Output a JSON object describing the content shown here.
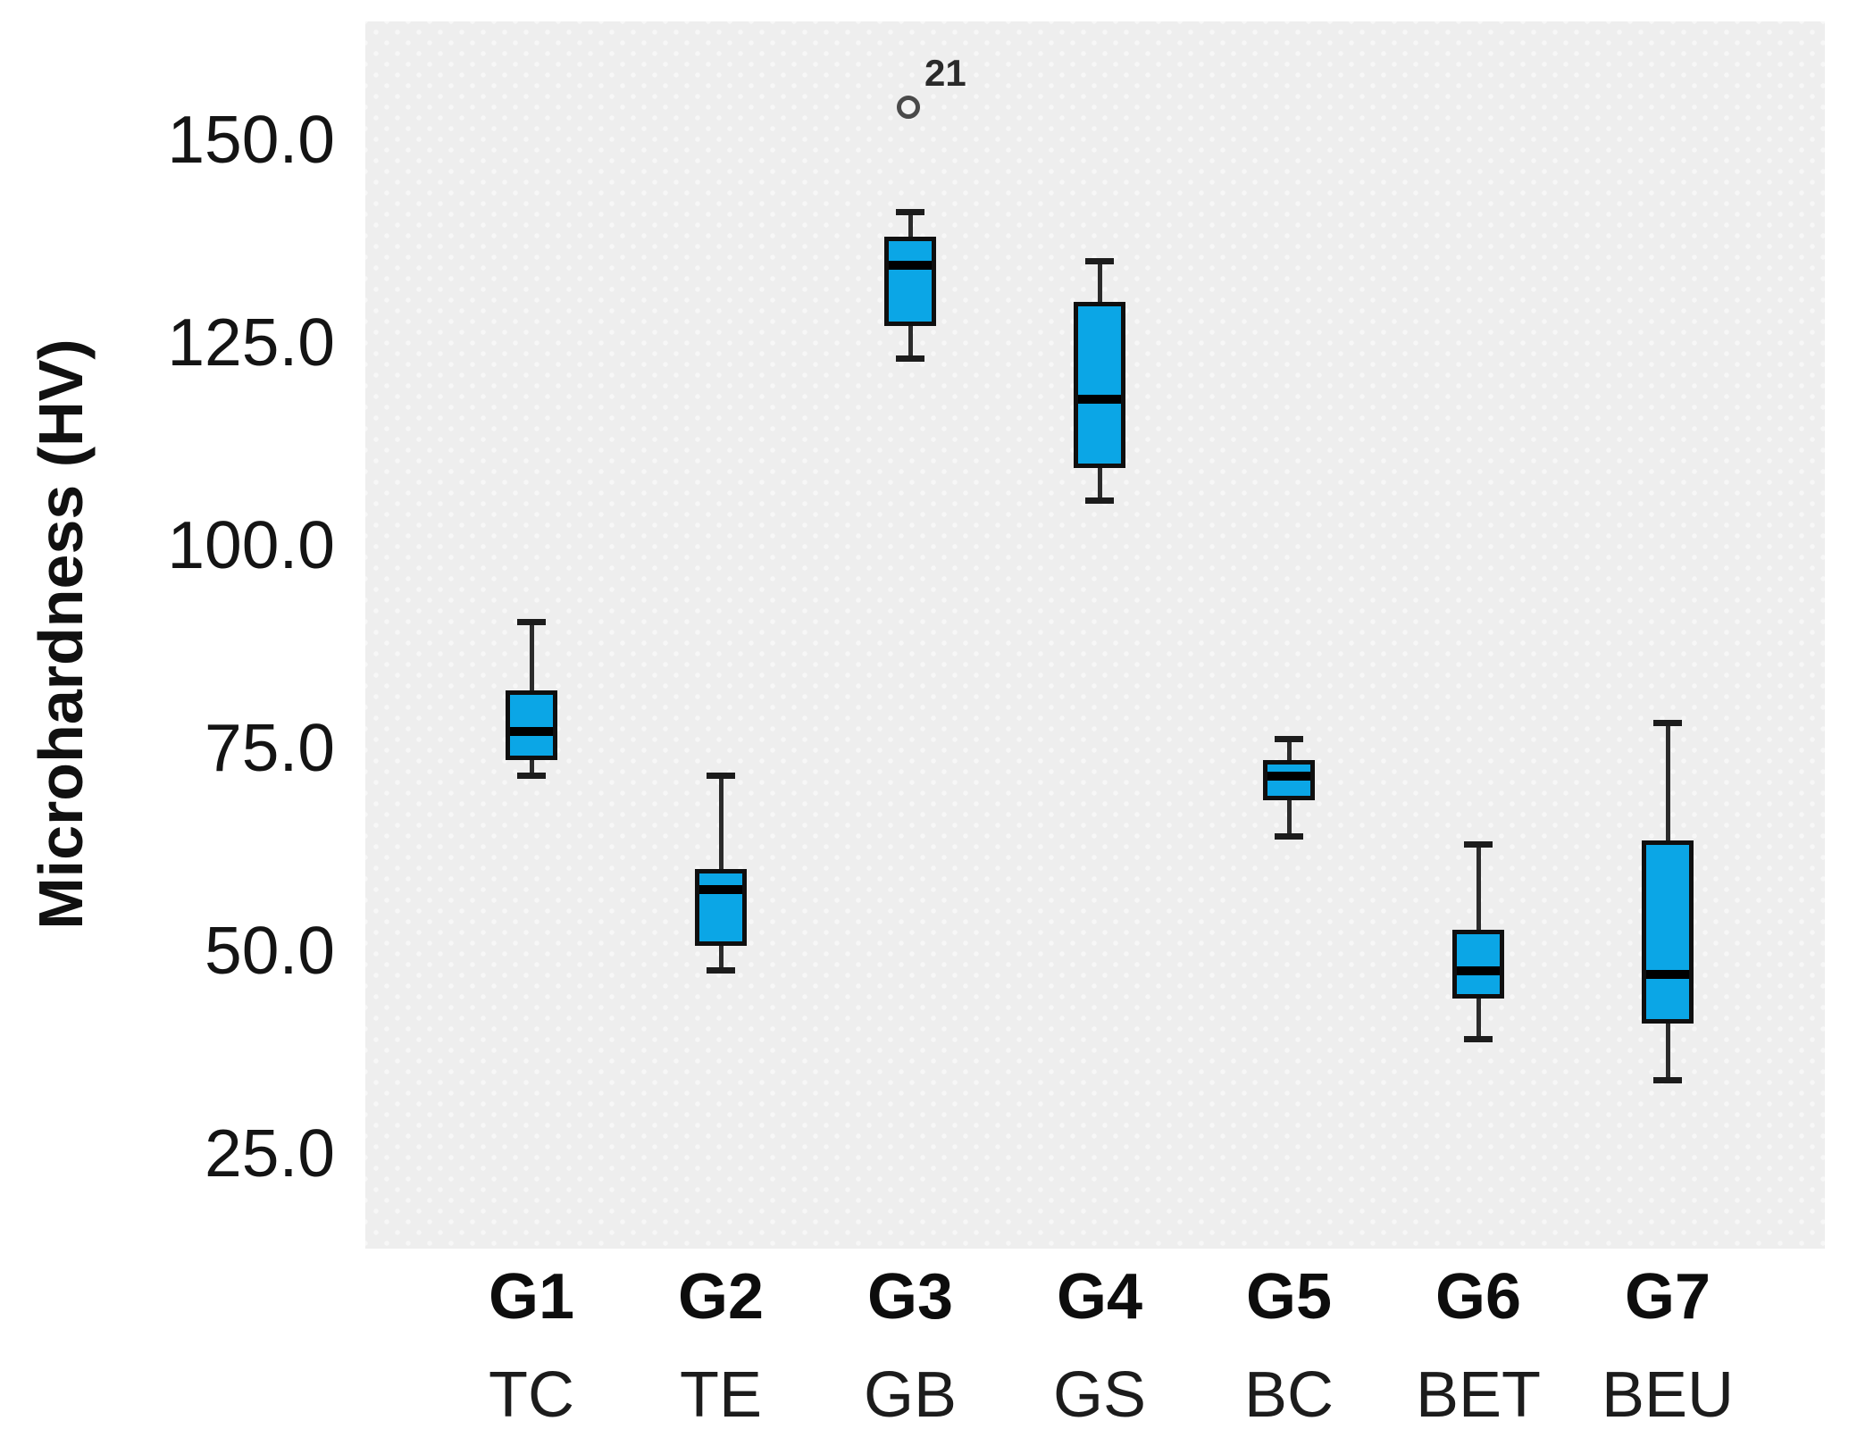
{
  "figure": {
    "colors": {
      "box_fill": "#0ba6e6",
      "box_stroke": "#0f0f0f",
      "median_line": "#000000",
      "whisker": "#2b2b2b",
      "plot_background": "#eeeeee",
      "outlier_stroke": "#4a4a4a",
      "text": "#1a1a1a"
    }
  },
  "chart_data": {
    "type": "box",
    "title": "",
    "ylabel": "Microhardness (HV)",
    "xlabel": "",
    "ylim": [
      13,
      164.5
    ],
    "yticks": [
      150,
      125,
      100,
      75,
      50,
      25
    ],
    "ytick_labels": [
      "150.0",
      "125.0",
      "100.0",
      "75.0",
      "50.0",
      "25.0"
    ],
    "grid": false,
    "legend": null,
    "categories": [
      "G1",
      "G2",
      "G3",
      "G4",
      "G5",
      "G6",
      "G7"
    ],
    "category_sublabels": [
      "TC",
      "TE",
      "GB",
      "GS",
      "BC",
      "BET",
      "BEU"
    ],
    "series": [
      {
        "group": "G1",
        "treatment": "TC",
        "whisker_low": 71.5,
        "q1": 73.5,
        "median": 77,
        "q3": 82,
        "whisker_high": 90.5,
        "outliers": []
      },
      {
        "group": "G2",
        "treatment": "TE",
        "whisker_low": 47.5,
        "q1": 50.5,
        "median": 57.5,
        "q3": 60,
        "whisker_high": 71.5,
        "outliers": []
      },
      {
        "group": "G3",
        "treatment": "GB",
        "whisker_low": 123,
        "q1": 127,
        "median": 134.5,
        "q3": 138,
        "whisker_high": 141,
        "outliers": [
          {
            "value": 154,
            "label": "21"
          }
        ]
      },
      {
        "group": "G4",
        "treatment": "GS",
        "whisker_low": 105.5,
        "q1": 109.5,
        "median": 118,
        "q3": 130,
        "whisker_high": 135,
        "outliers": []
      },
      {
        "group": "G5",
        "treatment": "BC",
        "whisker_low": 64,
        "q1": 68.5,
        "median": 71.5,
        "q3": 73.5,
        "whisker_high": 76,
        "outliers": []
      },
      {
        "group": "G6",
        "treatment": "BET",
        "whisker_low": 39,
        "q1": 44,
        "median": 47.5,
        "q3": 52.5,
        "whisker_high": 63,
        "outliers": []
      },
      {
        "group": "G7",
        "treatment": "BEU",
        "whisker_low": 34,
        "q1": 41,
        "median": 47,
        "q3": 63.5,
        "whisker_high": 78,
        "outliers": []
      }
    ]
  }
}
